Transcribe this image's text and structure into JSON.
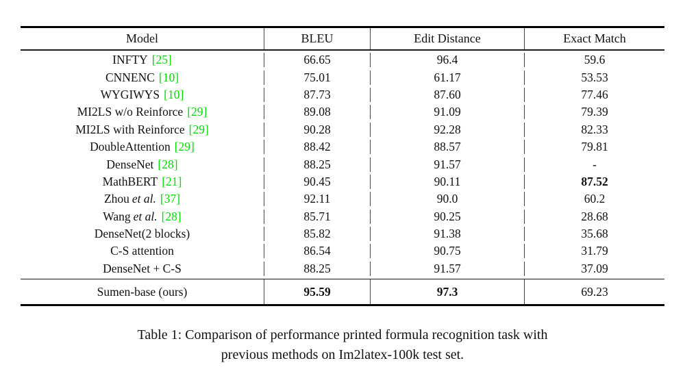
{
  "table": {
    "headers": [
      "Model",
      "BLEU",
      "Edit Distance",
      "Exact Match"
    ],
    "citation_color": "#00dd00",
    "rows": [
      {
        "model": "INFTY",
        "etal": "",
        "cite": "[25]",
        "bleu": "66.65",
        "edit": "96.4",
        "exact": "59.6",
        "bleu_bold": false,
        "edit_bold": false,
        "exact_bold": false
      },
      {
        "model": "CNNENC",
        "etal": "",
        "cite": "[10]",
        "bleu": "75.01",
        "edit": "61.17",
        "exact": "53.53",
        "bleu_bold": false,
        "edit_bold": false,
        "exact_bold": false
      },
      {
        "model": "WYGIWYS",
        "etal": "",
        "cite": "[10]",
        "bleu": "87.73",
        "edit": "87.60",
        "exact": "77.46",
        "bleu_bold": false,
        "edit_bold": false,
        "exact_bold": false
      },
      {
        "model": "MI2LS w/o Reinforce",
        "etal": "",
        "cite": "[29]",
        "bleu": "89.08",
        "edit": "91.09",
        "exact": "79.39",
        "bleu_bold": false,
        "edit_bold": false,
        "exact_bold": false
      },
      {
        "model": "MI2LS with Reinforce",
        "etal": "",
        "cite": "[29]",
        "bleu": "90.28",
        "edit": "92.28",
        "exact": "82.33",
        "bleu_bold": false,
        "edit_bold": false,
        "exact_bold": false
      },
      {
        "model": "DoubleAttention",
        "etal": "",
        "cite": "[29]",
        "bleu": "88.42",
        "edit": "88.57",
        "exact": "79.81",
        "bleu_bold": false,
        "edit_bold": false,
        "exact_bold": false
      },
      {
        "model": "DenseNet",
        "etal": "",
        "cite": "[28]",
        "bleu": "88.25",
        "edit": "91.57",
        "exact": "-",
        "bleu_bold": false,
        "edit_bold": false,
        "exact_bold": false
      },
      {
        "model": "MathBERT",
        "etal": "",
        "cite": "[21]",
        "bleu": "90.45",
        "edit": "90.11",
        "exact": "87.52",
        "bleu_bold": false,
        "edit_bold": false,
        "exact_bold": true
      },
      {
        "model": "Zhou",
        "etal": "et al.",
        "cite": "[37]",
        "bleu": "92.11",
        "edit": "90.0",
        "exact": "60.2",
        "bleu_bold": false,
        "edit_bold": false,
        "exact_bold": false
      },
      {
        "model": "Wang",
        "etal": "et al.",
        "cite": "[28]",
        "bleu": "85.71",
        "edit": "90.25",
        "exact": "28.68",
        "bleu_bold": false,
        "edit_bold": false,
        "exact_bold": false
      },
      {
        "model": "DenseNet(2 blocks)",
        "etal": "",
        "cite": "",
        "bleu": "85.82",
        "edit": "91.38",
        "exact": "35.68",
        "bleu_bold": false,
        "edit_bold": false,
        "exact_bold": false
      },
      {
        "model": "C-S attention",
        "etal": "",
        "cite": "",
        "bleu": "86.54",
        "edit": "90.75",
        "exact": "31.79",
        "bleu_bold": false,
        "edit_bold": false,
        "exact_bold": false
      },
      {
        "model": "DenseNet + C-S",
        "etal": "",
        "cite": "",
        "bleu": "88.25",
        "edit": "91.57",
        "exact": "37.09",
        "bleu_bold": false,
        "edit_bold": false,
        "exact_bold": false
      }
    ],
    "footer_row": {
      "model": "Sumen-base (ours)",
      "etal": "",
      "cite": "",
      "bleu": "95.59",
      "edit": "97.3",
      "exact": "69.23",
      "bleu_bold": true,
      "edit_bold": true,
      "exact_bold": false
    }
  },
  "caption": {
    "line1": "Table 1: Comparison of performance printed formula recognition task with",
    "line2": "previous methods on Im2latex-100k test set."
  }
}
